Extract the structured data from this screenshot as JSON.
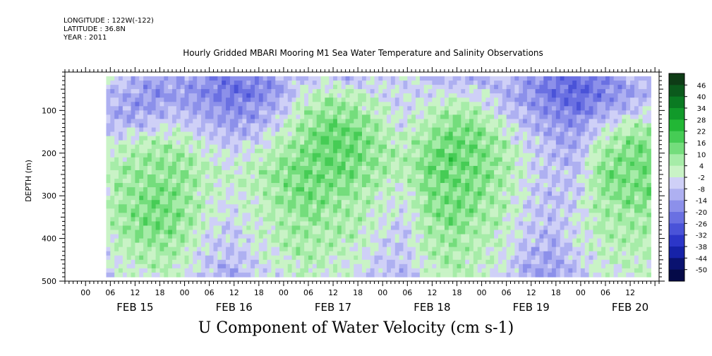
{
  "header": {
    "longitude": "LONGITUDE : 122W(-122)",
    "latitude": "LATITUDE : 36.8N",
    "year": "YEAR : 2011"
  },
  "chart_data": {
    "type": "heatmap",
    "title": "Hourly Gridded MBARI Mooring M1 Sea Water Temperature and Salinity Observations",
    "caption": "U Component of Water Velocity (cm s-1)",
    "ylabel": "DEPTH (m)",
    "x_start": "2011-02-14 19:00",
    "x_end": "2011-02-20 19:00",
    "x_hour_ticks": [
      "00",
      "06",
      "12",
      "18",
      "00",
      "06",
      "12",
      "18",
      "00",
      "06",
      "12",
      "18",
      "00",
      "06",
      "12",
      "18",
      "00",
      "06",
      "12",
      "18",
      "00",
      "06",
      "12"
    ],
    "x_day_labels": [
      "FEB 15",
      "FEB 16",
      "FEB 17",
      "FEB 18",
      "FEB 19",
      "FEB 20"
    ],
    "y_ticks": [
      100,
      200,
      300,
      400,
      500
    ],
    "ylim": [
      500,
      10
    ],
    "data_depth_range": [
      20,
      490
    ],
    "data_time_range": [
      "2011-02-15 05:00",
      "2011-02-20 17:00"
    ],
    "colorbar": {
      "levels": [
        46,
        40,
        34,
        28,
        22,
        16,
        10,
        4,
        -2,
        -8,
        -14,
        -20,
        -26,
        -32,
        -38,
        -44,
        -50
      ],
      "colors": [
        "#0e3c16",
        "#0b5a1c",
        "#0a7a22",
        "#119a2a",
        "#22b735",
        "#46cc55",
        "#74dd7c",
        "#a6eca8",
        "#c9f3c6",
        "#cfd0f7",
        "#aeb0f1",
        "#8c90ea",
        "#6a70e2",
        "#4a53d8",
        "#2c36c8",
        "#1622a8",
        "#0a1270",
        "#050a48"
      ]
    },
    "velocity_field": {
      "depths_m": [
        20,
        60,
        100,
        140,
        180,
        220,
        260,
        300,
        340,
        380,
        420,
        460,
        490
      ],
      "time_hours_from_feb15_00": [
        5,
        11,
        17,
        23,
        29,
        35,
        41,
        47,
        53,
        59,
        65,
        71,
        77,
        83,
        89,
        95,
        101,
        107,
        113,
        119,
        125,
        131,
        137,
        143
      ],
      "values": [
        [
          -4,
          -8,
          -14,
          -10,
          -16,
          -20,
          -18,
          -12,
          -6,
          -8,
          -10,
          -6,
          -4,
          -8,
          -12,
          -10,
          -6,
          -14,
          -20,
          -24,
          -18,
          -12,
          -8,
          -6
        ],
        [
          -8,
          -12,
          -16,
          -14,
          -18,
          -22,
          -20,
          -14,
          -2,
          4,
          2,
          -2,
          -6,
          -4,
          -2,
          -4,
          -10,
          -16,
          -22,
          -26,
          -20,
          -14,
          -10,
          -8
        ],
        [
          -10,
          -14,
          -12,
          -10,
          -14,
          -18,
          -16,
          -8,
          4,
          10,
          8,
          2,
          -4,
          2,
          6,
          4,
          -6,
          -12,
          -18,
          -22,
          -14,
          -8,
          -4,
          -6
        ],
        [
          -6,
          -8,
          -4,
          -2,
          -8,
          -12,
          -10,
          -2,
          8,
          14,
          12,
          6,
          -2,
          6,
          12,
          10,
          2,
          -8,
          -14,
          -16,
          -4,
          4,
          6,
          2
        ],
        [
          -2,
          2,
          6,
          4,
          -2,
          -6,
          -4,
          4,
          10,
          16,
          14,
          8,
          2,
          10,
          14,
          12,
          6,
          -4,
          -10,
          -12,
          4,
          10,
          12,
          8
        ],
        [
          2,
          6,
          10,
          8,
          2,
          -2,
          2,
          8,
          12,
          14,
          14,
          8,
          4,
          12,
          16,
          12,
          8,
          -2,
          -8,
          -10,
          8,
          12,
          14,
          10
        ],
        [
          4,
          8,
          10,
          10,
          4,
          0,
          4,
          10,
          14,
          12,
          10,
          6,
          2,
          12,
          14,
          12,
          6,
          -2,
          -8,
          -8,
          10,
          12,
          12,
          8
        ],
        [
          2,
          8,
          12,
          10,
          2,
          -2,
          2,
          8,
          12,
          10,
          8,
          2,
          -2,
          10,
          12,
          10,
          4,
          -4,
          -10,
          -6,
          8,
          10,
          10,
          6
        ],
        [
          4,
          10,
          14,
          10,
          2,
          -4,
          2,
          6,
          10,
          8,
          6,
          0,
          -4,
          8,
          12,
          8,
          4,
          -4,
          -8,
          -4,
          6,
          8,
          8,
          4
        ],
        [
          2,
          8,
          12,
          8,
          -2,
          -6,
          0,
          4,
          8,
          6,
          4,
          -2,
          -6,
          6,
          10,
          6,
          2,
          -6,
          -10,
          -2,
          4,
          6,
          6,
          2
        ],
        [
          -2,
          4,
          8,
          6,
          -4,
          -8,
          -2,
          2,
          6,
          4,
          2,
          -4,
          -6,
          4,
          8,
          4,
          0,
          -8,
          -12,
          -4,
          2,
          4,
          4,
          0
        ],
        [
          -4,
          2,
          4,
          2,
          -6,
          -10,
          -4,
          0,
          4,
          2,
          0,
          -6,
          -8,
          2,
          6,
          2,
          -2,
          -10,
          -14,
          -6,
          0,
          2,
          2,
          -2
        ],
        [
          -6,
          0,
          2,
          0,
          -8,
          -12,
          -6,
          -2,
          2,
          0,
          -2,
          -8,
          -10,
          0,
          4,
          0,
          -4,
          -12,
          -16,
          -8,
          -2,
          0,
          0,
          -4
        ]
      ]
    }
  }
}
